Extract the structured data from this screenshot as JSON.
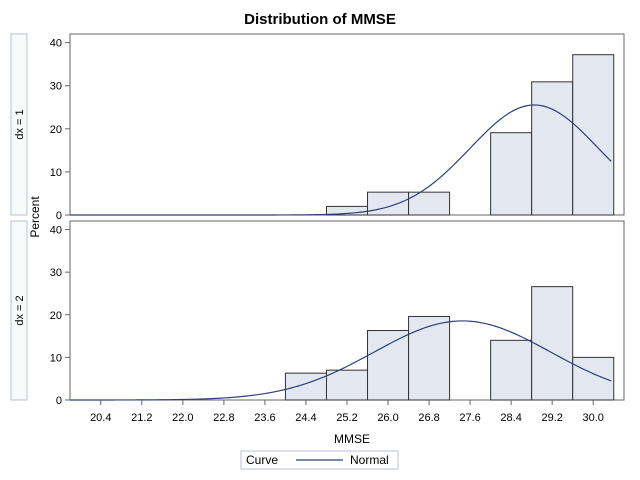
{
  "chart_data": {
    "type": "bar",
    "title": "Distribution of MMSE",
    "xlabel": "MMSE",
    "ylabel": "Percent",
    "xlim": [
      19.8,
      30.6
    ],
    "ylim": [
      0,
      42
    ],
    "bin_width": 0.8,
    "x_ticks": [
      "20.4",
      "21.2",
      "22.0",
      "22.8",
      "23.6",
      "24.4",
      "25.2",
      "26.0",
      "26.8",
      "27.6",
      "28.4",
      "29.2",
      "30.0"
    ],
    "y_ticks": [
      "0",
      "10",
      "20",
      "30",
      "40"
    ],
    "panels": [
      {
        "label": "dx = 1",
        "bins": [
          {
            "x": 25.2,
            "value": 2.0
          },
          {
            "x": 26.0,
            "value": 5.3
          },
          {
            "x": 26.8,
            "value": 5.3
          },
          {
            "x": 28.4,
            "value": 19.1
          },
          {
            "x": 29.2,
            "value": 30.9
          },
          {
            "x": 30.0,
            "value": 37.2
          }
        ],
        "normal_curve": {
          "mean": 28.85,
          "sd": 1.25
        }
      },
      {
        "label": "dx = 2",
        "bins": [
          {
            "x": 24.4,
            "value": 6.3
          },
          {
            "x": 25.2,
            "value": 7.0
          },
          {
            "x": 26.0,
            "value": 16.3
          },
          {
            "x": 26.8,
            "value": 19.6
          },
          {
            "x": 28.4,
            "value": 14.0
          },
          {
            "x": 29.2,
            "value": 26.6
          },
          {
            "x": 30.0,
            "value": 10.0
          }
        ],
        "normal_curve": {
          "mean": 27.45,
          "sd": 1.72
        }
      }
    ],
    "legend": {
      "title": "Curve",
      "entries": [
        "Normal"
      ]
    },
    "grid": false
  },
  "colors": {
    "bar_fill": "#e3e7ef",
    "bar_stroke": "#333333",
    "curve": "#2e3f7c",
    "axis": "#666666",
    "strip_border": "#b8c2d6",
    "strip_fill": "#f9fafc"
  }
}
